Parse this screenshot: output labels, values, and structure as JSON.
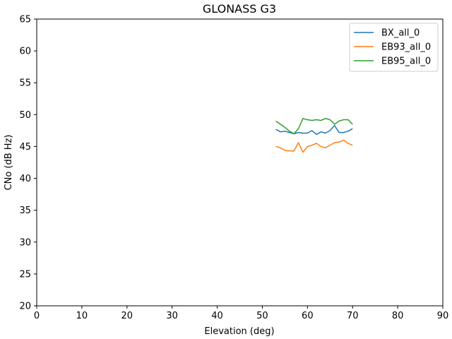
{
  "chart_data": {
    "type": "line",
    "title": "GLONASS G3",
    "xlabel": "Elevation (deg)",
    "ylabel": "CNo (dB Hz)",
    "xlim": [
      0,
      90
    ],
    "ylim": [
      20,
      65
    ],
    "xticks": [
      0,
      10,
      20,
      30,
      40,
      50,
      60,
      70,
      80,
      90
    ],
    "yticks": [
      20,
      25,
      30,
      35,
      40,
      45,
      50,
      55,
      60,
      65
    ],
    "grid": false,
    "legend_position": "top-right",
    "series": [
      {
        "name": "BX_all_0",
        "color": "#1f77b4",
        "x": [
          53,
          54,
          55,
          56,
          57,
          58,
          59,
          60,
          61,
          62,
          63,
          64,
          65,
          66,
          67,
          68,
          69,
          70
        ],
        "y": [
          47.7,
          47.3,
          47.4,
          47.2,
          47.0,
          47.2,
          47.1,
          47.1,
          47.5,
          46.9,
          47.3,
          47.1,
          47.5,
          48.3,
          47.2,
          47.2,
          47.4,
          47.8
        ]
      },
      {
        "name": "EB93_all_0",
        "color": "#ff7f0e",
        "x": [
          53,
          54,
          55,
          56,
          57,
          58,
          59,
          60,
          61,
          62,
          63,
          64,
          65,
          66,
          67,
          68,
          69,
          70
        ],
        "y": [
          45.0,
          44.8,
          44.4,
          44.3,
          44.3,
          45.6,
          44.1,
          45.0,
          45.2,
          45.5,
          45.0,
          44.8,
          45.2,
          45.6,
          45.7,
          46.0,
          45.5,
          45.2
        ]
      },
      {
        "name": "EB95_all_0",
        "color": "#2ca02c",
        "x": [
          53,
          54,
          55,
          56,
          57,
          58,
          59,
          60,
          61,
          62,
          63,
          64,
          65,
          66,
          67,
          68,
          69,
          70
        ],
        "y": [
          49.0,
          48.5,
          48.0,
          47.4,
          47.0,
          47.8,
          49.4,
          49.2,
          49.1,
          49.2,
          49.1,
          49.4,
          49.2,
          48.5,
          49.0,
          49.2,
          49.2,
          48.5
        ]
      }
    ]
  }
}
